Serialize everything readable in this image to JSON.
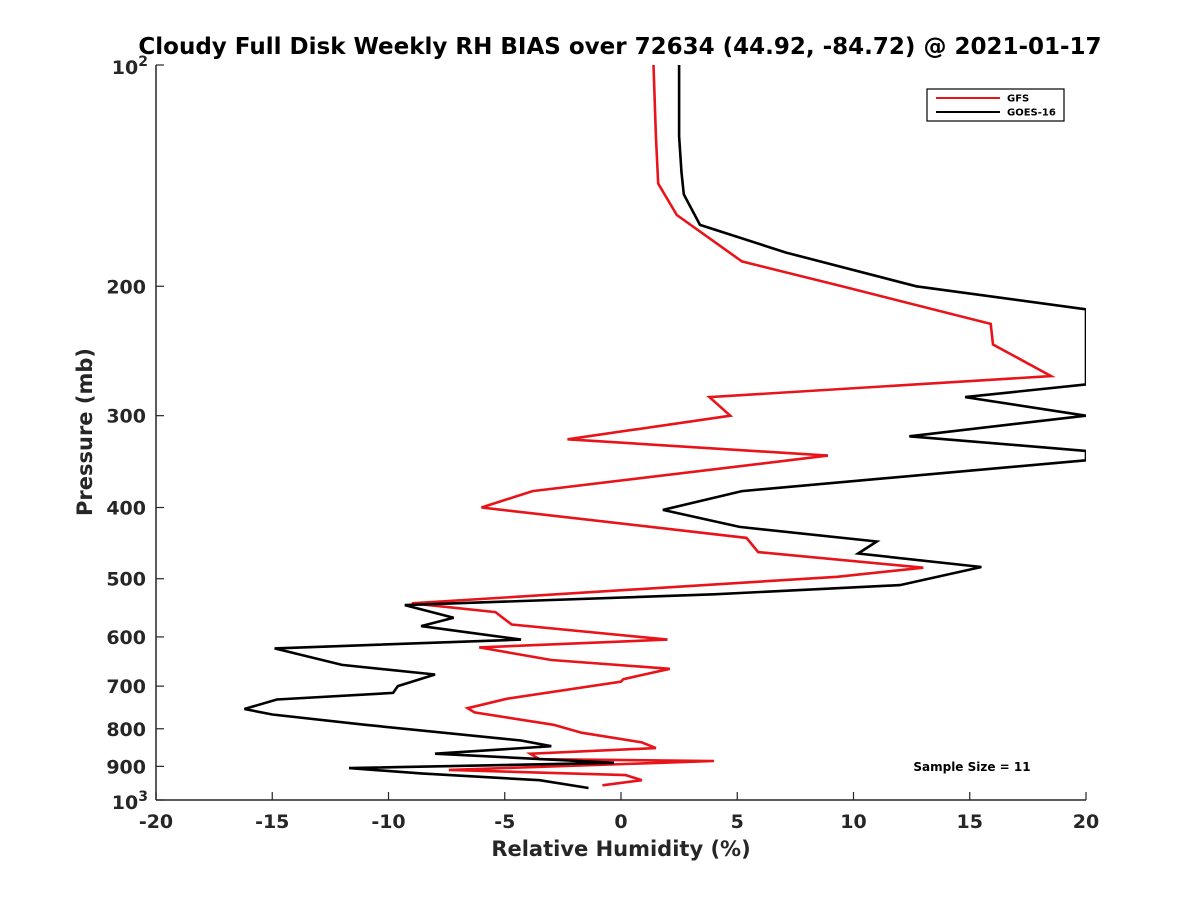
{
  "chart_data": {
    "type": "line",
    "title": "Cloudy Full Disk Weekly RH BIAS over 72634 (44.92, -84.72) @ 2021-01-17",
    "xlabel": "Relative Humidity (%)",
    "ylabel": "Pressure (mb)",
    "xlim": [
      -20,
      20
    ],
    "ylim": [
      100,
      1000
    ],
    "yscale": "log",
    "y_reversed": true,
    "x_ticks": [
      -20,
      -15,
      -10,
      -5,
      0,
      5,
      10,
      15,
      20
    ],
    "y_ticks": [
      {
        "value": 100,
        "base": "10",
        "exp": "2"
      },
      {
        "value": 200,
        "label": "200"
      },
      {
        "value": 300,
        "label": "300"
      },
      {
        "value": 400,
        "label": "400"
      },
      {
        "value": 500,
        "label": "500"
      },
      {
        "value": 600,
        "label": "600"
      },
      {
        "value": 700,
        "label": "700"
      },
      {
        "value": 800,
        "label": "800"
      },
      {
        "value": 900,
        "label": "900"
      },
      {
        "value": 1000,
        "base": "10",
        "exp": "3"
      }
    ],
    "legend_position": "top-right",
    "annotation": "Sample Size = 11",
    "series": [
      {
        "name": "GFS",
        "color": "#e8141a",
        "points": [
          [
            1.4,
            100
          ],
          [
            1.5,
            125
          ],
          [
            1.6,
            145
          ],
          [
            2.4,
            160
          ],
          [
            5.2,
            185
          ],
          [
            9.5,
            200
          ],
          [
            15.9,
            225
          ],
          [
            16.0,
            240
          ],
          [
            18.5,
            265
          ],
          [
            3.8,
            283
          ],
          [
            4.7,
            300
          ],
          [
            -2.3,
            323
          ],
          [
            8.9,
            340
          ],
          [
            -3.8,
            380
          ],
          [
            -6.0,
            400
          ],
          [
            5.4,
            440
          ],
          [
            5.9,
            460
          ],
          [
            13.0,
            483
          ],
          [
            9.3,
            497
          ],
          [
            -9.0,
            540
          ],
          [
            -5.4,
            555
          ],
          [
            -4.7,
            577
          ],
          [
            2.0,
            605
          ],
          [
            -6.1,
            620
          ],
          [
            -3.0,
            645
          ],
          [
            2.1,
            663
          ],
          [
            0.1,
            685
          ],
          [
            0.0,
            690
          ],
          [
            -4.9,
            728
          ],
          [
            -6.6,
            750
          ],
          [
            -6.3,
            760
          ],
          [
            -2.9,
            790
          ],
          [
            -1.7,
            810
          ],
          [
            0.9,
            835
          ],
          [
            1.5,
            850
          ],
          [
            -3.9,
            865
          ],
          [
            -3.5,
            880
          ],
          [
            4.0,
            885
          ],
          [
            -7.4,
            910
          ],
          [
            0.2,
            925
          ],
          [
            0.9,
            940
          ],
          [
            -0.8,
            955
          ]
        ]
      },
      {
        "name": "GOES-16",
        "color": "#000000",
        "points": [
          [
            2.5,
            100
          ],
          [
            2.5,
            125
          ],
          [
            2.6,
            140
          ],
          [
            2.7,
            150
          ],
          [
            3.4,
            165
          ],
          [
            7.1,
            180
          ],
          [
            12.7,
            200
          ],
          [
            20.0,
            215
          ],
          [
            20.0,
            272
          ],
          [
            14.8,
            283
          ],
          [
            20.0,
            300
          ],
          [
            12.4,
            320
          ],
          [
            20.0,
            335
          ],
          [
            20.0,
            345
          ],
          [
            5.2,
            380
          ],
          [
            1.8,
            403
          ],
          [
            5.1,
            425
          ],
          [
            11.0,
            445
          ],
          [
            10.2,
            462
          ],
          [
            15.5,
            482
          ],
          [
            12.0,
            510
          ],
          [
            4.0,
            525
          ],
          [
            -9.3,
            543
          ],
          [
            -7.2,
            565
          ],
          [
            -8.6,
            580
          ],
          [
            -4.3,
            605
          ],
          [
            -14.9,
            622
          ],
          [
            -12.0,
            655
          ],
          [
            -8.0,
            675
          ],
          [
            -9.6,
            700
          ],
          [
            -9.8,
            715
          ],
          [
            -14.8,
            730
          ],
          [
            -16.2,
            752
          ],
          [
            -15.0,
            765
          ],
          [
            -11.0,
            790
          ],
          [
            -4.3,
            830
          ],
          [
            -3.0,
            845
          ],
          [
            -8.0,
            865
          ],
          [
            -0.3,
            890
          ],
          [
            -11.7,
            905
          ],
          [
            -8.6,
            920
          ],
          [
            -3.5,
            940
          ],
          [
            -1.4,
            963
          ]
        ]
      }
    ]
  }
}
